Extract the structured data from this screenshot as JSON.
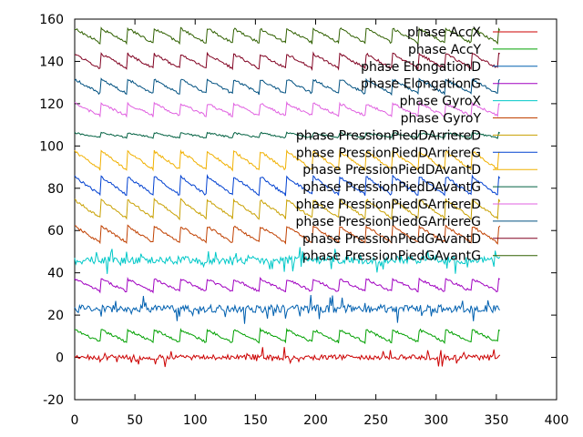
{
  "chart_data": {
    "type": "line",
    "xlim": [
      0,
      400
    ],
    "ylim": [
      -20,
      160
    ],
    "x_ticks": [
      "0",
      "50",
      "100",
      "150",
      "200",
      "250",
      "300",
      "350",
      "400"
    ],
    "y_ticks": [
      "-20",
      "0",
      "20",
      "40",
      "60",
      "80",
      "100",
      "120",
      "140",
      "160"
    ],
    "grid": false,
    "legend_position": "top-right",
    "series": [
      {
        "name": "phase AccX",
        "color": "#cc0000",
        "offset": 0,
        "amplitude": 4,
        "pattern": "spiky",
        "period": 20
      },
      {
        "name": "phase AccY",
        "color": "#00a000",
        "offset": 10,
        "amplitude": 6,
        "pattern": "sawtooth",
        "period": 22
      },
      {
        "name": "phase ElongationD",
        "color": "#0060b0",
        "offset": 23,
        "amplitude": 6,
        "pattern": "spiky",
        "period": 20
      },
      {
        "name": "phase ElongationG",
        "color": "#a000c0",
        "offset": 34,
        "amplitude": 6,
        "pattern": "sawtooth",
        "period": 22
      },
      {
        "name": "phase GyroX",
        "color": "#00c8c8",
        "offset": 46,
        "amplitude": 6,
        "pattern": "spiky",
        "period": 20
      },
      {
        "name": "phase GyroY",
        "color": "#c04000",
        "offset": 58,
        "amplitude": 8,
        "pattern": "sawtooth",
        "period": 22
      },
      {
        "name": "phase PressionPiedDArriereD",
        "color": "#c8a000",
        "offset": 70,
        "amplitude": 9,
        "pattern": "sawtooth",
        "period": 22
      },
      {
        "name": "phase PressionPiedDArriereG",
        "color": "#0040d0",
        "offset": 81,
        "amplitude": 9,
        "pattern": "sawtooth",
        "period": 22
      },
      {
        "name": "phase PressionPiedDAvantD",
        "color": "#f0b000",
        "offset": 93,
        "amplitude": 9,
        "pattern": "sawtooth",
        "period": 22
      },
      {
        "name": "phase PressionPiedDAvantG",
        "color": "#006040",
        "offset": 105,
        "amplitude": 6,
        "pattern": "flat",
        "period": 22
      },
      {
        "name": "phase PressionPiedGArriereD",
        "color": "#e060e0",
        "offset": 117,
        "amplitude": 6,
        "pattern": "sawtooth",
        "period": 22
      },
      {
        "name": "phase PressionPiedGArriereG",
        "color": "#005080",
        "offset": 128,
        "amplitude": 7,
        "pattern": "sawtooth",
        "period": 22
      },
      {
        "name": "phase PressionPiedGAvantD",
        "color": "#800020",
        "offset": 140,
        "amplitude": 7,
        "pattern": "sawtooth",
        "period": 22
      },
      {
        "name": "phase PressionPiedGAvantG",
        "color": "#306000",
        "offset": 152,
        "amplitude": 7,
        "pattern": "sawtooth",
        "period": 22
      }
    ],
    "x_max": 353
  }
}
